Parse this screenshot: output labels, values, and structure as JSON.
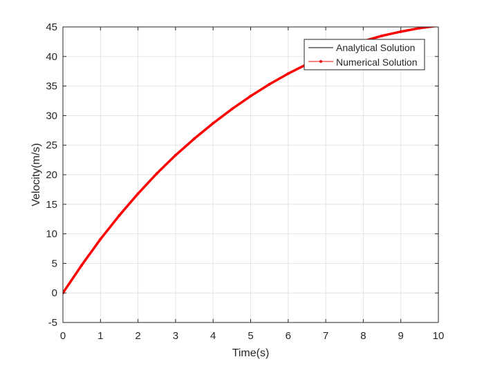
{
  "chart_data": {
    "type": "line",
    "xlabel": "Time(s)",
    "ylabel": "Velocity(m/s)",
    "xlim": [
      0,
      10
    ],
    "ylim": [
      -5,
      45
    ],
    "xticks": [
      "0",
      "1",
      "2",
      "3",
      "4",
      "5",
      "6",
      "7",
      "8",
      "9",
      "10"
    ],
    "yticks": [
      "-5",
      "0",
      "5",
      "10",
      "15",
      "20",
      "25",
      "30",
      "35",
      "40",
      "45"
    ],
    "grid": true,
    "legend_position": "top-right",
    "x": [
      0,
      0.5,
      1,
      1.5,
      2,
      2.5,
      3,
      3.5,
      4,
      4.5,
      5,
      5.5,
      6,
      6.5,
      7,
      7.5,
      8,
      8.5,
      9,
      9.5,
      10
    ],
    "series": [
      {
        "name": "Analytical Solution",
        "color": "#000000",
        "values": [
          0,
          4.7,
          9.1,
          13.1,
          16.8,
          20.2,
          23.3,
          26.1,
          28.7,
          31.1,
          33.3,
          35.3,
          37.1,
          38.7,
          40.2,
          41.5,
          42.6,
          43.5,
          44.2,
          44.8,
          45.2
        ]
      },
      {
        "name": "Numerical Solution",
        "color": "#ff0000",
        "marker": "point",
        "values": [
          0,
          4.7,
          9.1,
          13.1,
          16.8,
          20.2,
          23.3,
          26.1,
          28.7,
          31.1,
          33.3,
          35.3,
          37.1,
          38.7,
          40.2,
          41.5,
          42.6,
          43.5,
          44.2,
          44.8,
          45.2
        ]
      }
    ]
  }
}
